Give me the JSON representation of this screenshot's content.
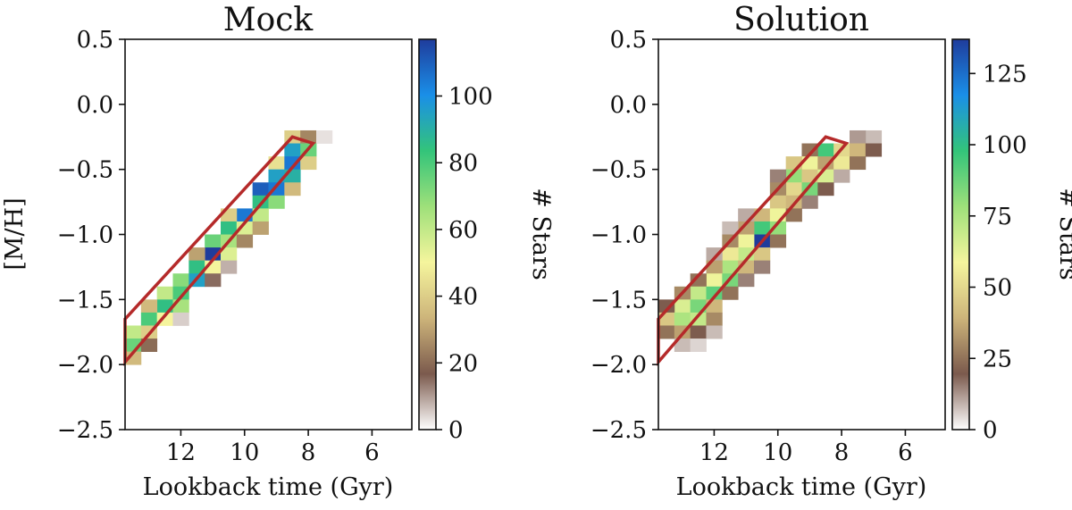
{
  "chart_data": [
    {
      "type": "heatmap",
      "title": "Mock",
      "xlabel": "Lookback time (Gyr)",
      "ylabel": "[M/H]",
      "xlim": [
        13.75,
        4.75
      ],
      "ylim": [
        -2.5,
        0.5
      ],
      "x_inverted": true,
      "xticks": [
        12,
        10,
        8,
        6
      ],
      "xtick_labels": [
        "12",
        "10",
        "8",
        "6"
      ],
      "yticks": [
        0.5,
        0.0,
        -0.5,
        -1.0,
        -1.5,
        -2.0,
        -2.5
      ],
      "ytick_labels": [
        "0.5",
        "0.0",
        "−0.5",
        "−1.0",
        "−1.5",
        "−2.0",
        "−2.5"
      ],
      "colorbar": {
        "label": "# Stars",
        "min": 0,
        "max": 117,
        "ticks": [
          0,
          20,
          40,
          60,
          80,
          100
        ],
        "tick_labels": [
          "0",
          "20",
          "40",
          "60",
          "80",
          "100"
        ]
      },
      "colormap": [
        "#ffffff",
        "#7b5a4d",
        "#cdb47a",
        "#f5f59d",
        "#9ee07a",
        "#33c47a",
        "#1a8fe8",
        "#1f3c9c"
      ],
      "bin_width_gyr": 0.5,
      "bin_height_dex": 0.1,
      "cells": [
        [
          8.5,
          -0.25,
          40
        ],
        [
          8.0,
          -0.25,
          25
        ],
        [
          7.5,
          -0.25,
          3
        ],
        [
          8.5,
          -0.35,
          95
        ],
        [
          8.0,
          -0.35,
          75
        ],
        [
          9.0,
          -0.45,
          45
        ],
        [
          8.5,
          -0.45,
          105
        ],
        [
          8.0,
          -0.45,
          40
        ],
        [
          9.0,
          -0.55,
          95
        ],
        [
          8.5,
          -0.55,
          90
        ],
        [
          9.5,
          -0.65,
          110
        ],
        [
          9.0,
          -0.65,
          105
        ],
        [
          8.5,
          -0.65,
          35
        ],
        [
          9.5,
          -0.75,
          85
        ],
        [
          9.0,
          -0.75,
          70
        ],
        [
          10.0,
          -0.85,
          105
        ],
        [
          9.5,
          -0.85,
          60
        ],
        [
          10.5,
          -0.85,
          40
        ],
        [
          10.5,
          -0.95,
          85
        ],
        [
          10.0,
          -0.95,
          55
        ],
        [
          9.5,
          -0.95,
          30
        ],
        [
          11.0,
          -1.05,
          75
        ],
        [
          10.5,
          -1.05,
          65
        ],
        [
          10.0,
          -1.05,
          25
        ],
        [
          11.0,
          -1.15,
          117
        ],
        [
          10.5,
          -1.15,
          55
        ],
        [
          11.5,
          -1.15,
          30
        ],
        [
          11.5,
          -1.25,
          85
        ],
        [
          11.0,
          -1.25,
          50
        ],
        [
          10.5,
          -1.25,
          8
        ],
        [
          12.0,
          -1.35,
          70
        ],
        [
          11.5,
          -1.35,
          95
        ],
        [
          11.0,
          -1.35,
          15
        ],
        [
          12.5,
          -1.45,
          60
        ],
        [
          12.0,
          -1.45,
          80
        ],
        [
          12.5,
          -1.55,
          85
        ],
        [
          12.0,
          -1.55,
          65
        ],
        [
          13.0,
          -1.55,
          35
        ],
        [
          13.0,
          -1.65,
          80
        ],
        [
          12.5,
          -1.65,
          50
        ],
        [
          12.0,
          -1.65,
          5
        ],
        [
          13.5,
          -1.75,
          60
        ],
        [
          13.0,
          -1.75,
          40
        ],
        [
          13.5,
          -1.85,
          75
        ],
        [
          13.0,
          -1.85,
          20
        ],
        [
          13.5,
          -1.95,
          35
        ]
      ],
      "polygon": {
        "color": "#b52a2a",
        "points": [
          [
            13.75,
            -1.65
          ],
          [
            8.5,
            -0.25
          ],
          [
            7.85,
            -0.3
          ],
          [
            13.75,
            -1.98
          ]
        ]
      }
    },
    {
      "type": "heatmap",
      "title": "Solution",
      "xlabel": "Lookback time (Gyr)",
      "ylabel": "",
      "xlim": [
        13.75,
        4.75
      ],
      "ylim": [
        -2.5,
        0.5
      ],
      "x_inverted": true,
      "xticks": [
        12,
        10,
        8,
        6
      ],
      "xtick_labels": [
        "12",
        "10",
        "8",
        "6"
      ],
      "yticks": [
        0.5,
        0.0,
        -0.5,
        -1.0,
        -1.5,
        -2.0,
        -2.5
      ],
      "ytick_labels": [
        "0.5",
        "0.0",
        "−0.5",
        "−1.0",
        "−1.5",
        "−2.0",
        "−2.5"
      ],
      "colorbar": {
        "label": "# Stars",
        "min": 0,
        "max": 137,
        "ticks": [
          0,
          25,
          50,
          75,
          100,
          125
        ],
        "tick_labels": [
          "0",
          "25",
          "50",
          "75",
          "100",
          "125"
        ]
      },
      "colormap": [
        "#ffffff",
        "#7b5a4d",
        "#cdb47a",
        "#f5f59d",
        "#9ee07a",
        "#33c47a",
        "#1a8fe8",
        "#1f3c9c"
      ],
      "bin_width_gyr": 0.5,
      "bin_height_dex": 0.1,
      "cells": [
        [
          7.0,
          -0.25,
          8
        ],
        [
          7.5,
          -0.25,
          12
        ],
        [
          8.5,
          -0.35,
          95
        ],
        [
          8.0,
          -0.35,
          50
        ],
        [
          9.0,
          -0.35,
          25
        ],
        [
          7.5,
          -0.35,
          40
        ],
        [
          7.0,
          -0.35,
          20
        ],
        [
          9.0,
          -0.45,
          60
        ],
        [
          8.5,
          -0.45,
          35
        ],
        [
          9.5,
          -0.45,
          45
        ],
        [
          8.0,
          -0.45,
          55
        ],
        [
          7.5,
          -0.45,
          25
        ],
        [
          9.5,
          -0.55,
          80
        ],
        [
          9.0,
          -0.55,
          45
        ],
        [
          8.5,
          -0.55,
          65
        ],
        [
          10.0,
          -0.55,
          15
        ],
        [
          8.0,
          -0.55,
          10
        ],
        [
          9.5,
          -0.65,
          50
        ],
        [
          9.0,
          -0.65,
          85
        ],
        [
          10.0,
          -0.65,
          30
        ],
        [
          8.5,
          -0.65,
          20
        ],
        [
          10.0,
          -0.75,
          45
        ],
        [
          9.5,
          -0.75,
          40
        ],
        [
          9.0,
          -0.75,
          15
        ],
        [
          10.5,
          -0.85,
          40
        ],
        [
          10.0,
          -0.85,
          60
        ],
        [
          11.0,
          -0.85,
          10
        ],
        [
          9.5,
          -0.85,
          25
        ],
        [
          10.5,
          -0.95,
          95
        ],
        [
          10.0,
          -0.95,
          80
        ],
        [
          11.0,
          -0.95,
          35
        ],
        [
          11.5,
          -0.95,
          8
        ],
        [
          10.5,
          -1.05,
          137
        ],
        [
          11.0,
          -1.05,
          60
        ],
        [
          10.0,
          -1.05,
          25
        ],
        [
          11.5,
          -1.05,
          30
        ],
        [
          11.0,
          -1.15,
          70
        ],
        [
          10.5,
          -1.15,
          45
        ],
        [
          11.5,
          -1.15,
          55
        ],
        [
          12.0,
          -1.15,
          10
        ],
        [
          11.5,
          -1.25,
          75
        ],
        [
          11.0,
          -1.25,
          40
        ],
        [
          12.0,
          -1.25,
          35
        ],
        [
          10.5,
          -1.25,
          15
        ],
        [
          12.0,
          -1.35,
          60
        ],
        [
          11.5,
          -1.35,
          85
        ],
        [
          12.5,
          -1.35,
          25
        ],
        [
          11.0,
          -1.35,
          15
        ],
        [
          12.5,
          -1.45,
          70
        ],
        [
          12.0,
          -1.45,
          90
        ],
        [
          13.0,
          -1.45,
          30
        ],
        [
          11.5,
          -1.45,
          25
        ],
        [
          13.0,
          -1.55,
          65
        ],
        [
          12.5,
          -1.55,
          85
        ],
        [
          12.0,
          -1.55,
          40
        ],
        [
          13.5,
          -1.55,
          20
        ],
        [
          13.5,
          -1.65,
          45
        ],
        [
          13.0,
          -1.65,
          75
        ],
        [
          12.5,
          -1.65,
          70
        ],
        [
          12.0,
          -1.65,
          30
        ],
        [
          13.5,
          -1.75,
          25
        ],
        [
          13.0,
          -1.75,
          35
        ],
        [
          12.5,
          -1.75,
          20
        ],
        [
          12.0,
          -1.75,
          8
        ],
        [
          13.0,
          -1.85,
          8
        ],
        [
          12.5,
          -1.85,
          5
        ]
      ],
      "polygon": {
        "color": "#b52a2a",
        "points": [
          [
            13.75,
            -1.65
          ],
          [
            8.5,
            -0.25
          ],
          [
            7.85,
            -0.3
          ],
          [
            13.75,
            -1.98
          ]
        ]
      }
    }
  ]
}
